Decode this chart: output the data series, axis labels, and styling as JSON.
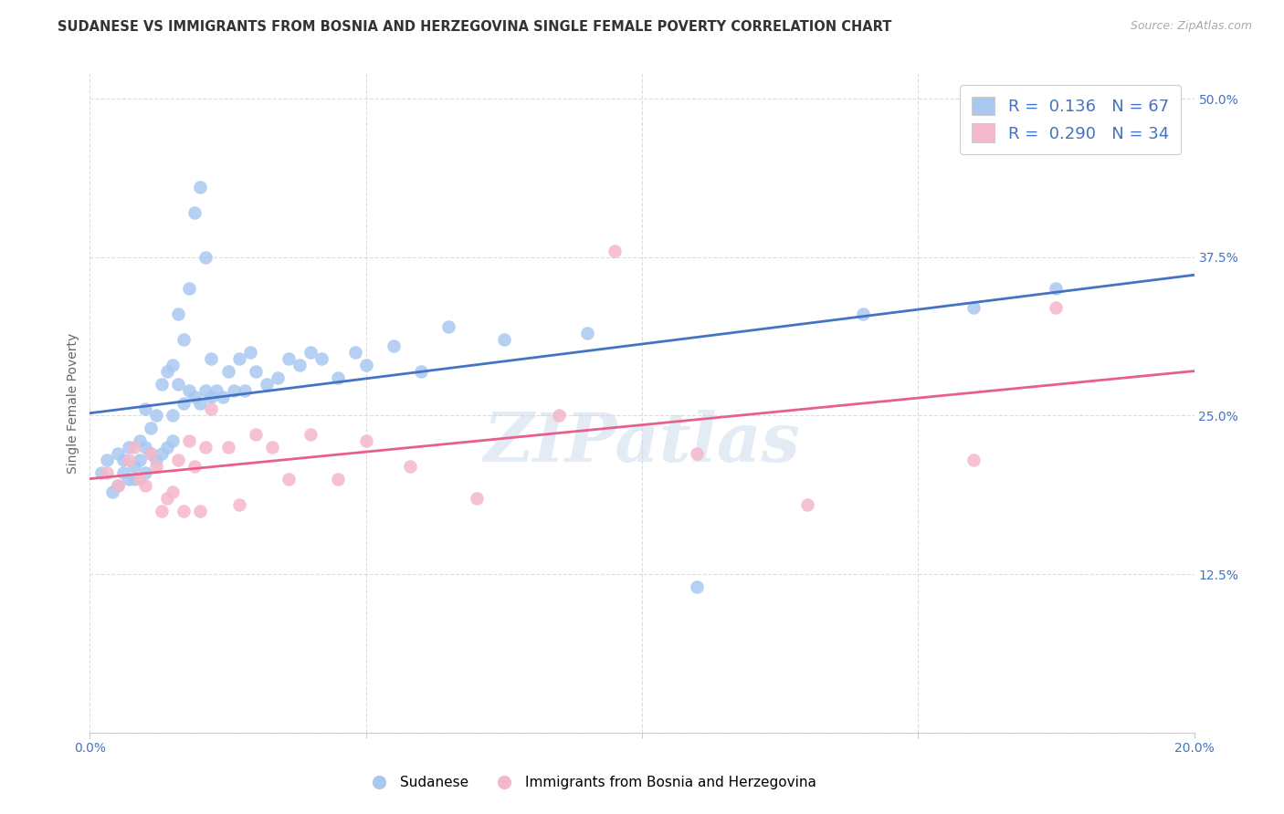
{
  "title": "SUDANESE VS IMMIGRANTS FROM BOSNIA AND HERZEGOVINA SINGLE FEMALE POVERTY CORRELATION CHART",
  "source": "Source: ZipAtlas.com",
  "ylabel": "Single Female Poverty",
  "xlim": [
    0.0,
    0.2
  ],
  "ylim": [
    0.0,
    0.52
  ],
  "xticks": [
    0.0,
    0.05,
    0.1,
    0.15,
    0.2
  ],
  "xticklabels": [
    "0.0%",
    "",
    "",
    "",
    "20.0%"
  ],
  "yticks": [
    0.0,
    0.125,
    0.25,
    0.375,
    0.5
  ],
  "yticklabels": [
    "",
    "12.5%",
    "25.0%",
    "37.5%",
    "50.0%"
  ],
  "blue_color": "#A8C8F0",
  "pink_color": "#F5B8CA",
  "blue_line_color": "#4472C4",
  "pink_line_color": "#E8608A",
  "blue_R": 0.136,
  "blue_N": 67,
  "pink_R": 0.29,
  "pink_N": 34,
  "watermark": "ZIPatlas",
  "blue_scatter_x": [
    0.002,
    0.003,
    0.004,
    0.005,
    0.005,
    0.006,
    0.006,
    0.007,
    0.007,
    0.008,
    0.008,
    0.009,
    0.009,
    0.01,
    0.01,
    0.01,
    0.011,
    0.011,
    0.012,
    0.012,
    0.013,
    0.013,
    0.014,
    0.014,
    0.015,
    0.015,
    0.015,
    0.016,
    0.016,
    0.017,
    0.017,
    0.018,
    0.018,
    0.019,
    0.019,
    0.02,
    0.02,
    0.021,
    0.021,
    0.022,
    0.022,
    0.023,
    0.024,
    0.025,
    0.026,
    0.027,
    0.028,
    0.029,
    0.03,
    0.032,
    0.034,
    0.036,
    0.038,
    0.04,
    0.042,
    0.045,
    0.048,
    0.05,
    0.055,
    0.06,
    0.065,
    0.075,
    0.09,
    0.11,
    0.14,
    0.16,
    0.175
  ],
  "blue_scatter_y": [
    0.205,
    0.215,
    0.19,
    0.195,
    0.22,
    0.205,
    0.215,
    0.2,
    0.225,
    0.21,
    0.2,
    0.215,
    0.23,
    0.205,
    0.225,
    0.255,
    0.22,
    0.24,
    0.215,
    0.25,
    0.22,
    0.275,
    0.225,
    0.285,
    0.23,
    0.25,
    0.29,
    0.275,
    0.33,
    0.26,
    0.31,
    0.27,
    0.35,
    0.265,
    0.41,
    0.26,
    0.43,
    0.27,
    0.375,
    0.265,
    0.295,
    0.27,
    0.265,
    0.285,
    0.27,
    0.295,
    0.27,
    0.3,
    0.285,
    0.275,
    0.28,
    0.295,
    0.29,
    0.3,
    0.295,
    0.28,
    0.3,
    0.29,
    0.305,
    0.285,
    0.32,
    0.31,
    0.315,
    0.115,
    0.33,
    0.335,
    0.35
  ],
  "pink_scatter_x": [
    0.003,
    0.005,
    0.007,
    0.008,
    0.009,
    0.01,
    0.011,
    0.012,
    0.013,
    0.014,
    0.015,
    0.016,
    0.017,
    0.018,
    0.019,
    0.02,
    0.021,
    0.022,
    0.025,
    0.027,
    0.03,
    0.033,
    0.036,
    0.04,
    0.045,
    0.05,
    0.058,
    0.07,
    0.085,
    0.095,
    0.11,
    0.13,
    0.16,
    0.175
  ],
  "pink_scatter_y": [
    0.205,
    0.195,
    0.215,
    0.225,
    0.2,
    0.195,
    0.22,
    0.21,
    0.175,
    0.185,
    0.19,
    0.215,
    0.175,
    0.23,
    0.21,
    0.175,
    0.225,
    0.255,
    0.225,
    0.18,
    0.235,
    0.225,
    0.2,
    0.235,
    0.2,
    0.23,
    0.21,
    0.185,
    0.25,
    0.38,
    0.22,
    0.18,
    0.215,
    0.335
  ],
  "grid_color": "#DDDDDD",
  "bg_color": "#FFFFFF",
  "title_fontsize": 10.5,
  "axis_label_fontsize": 10,
  "tick_fontsize": 10,
  "legend_fontsize": 13
}
